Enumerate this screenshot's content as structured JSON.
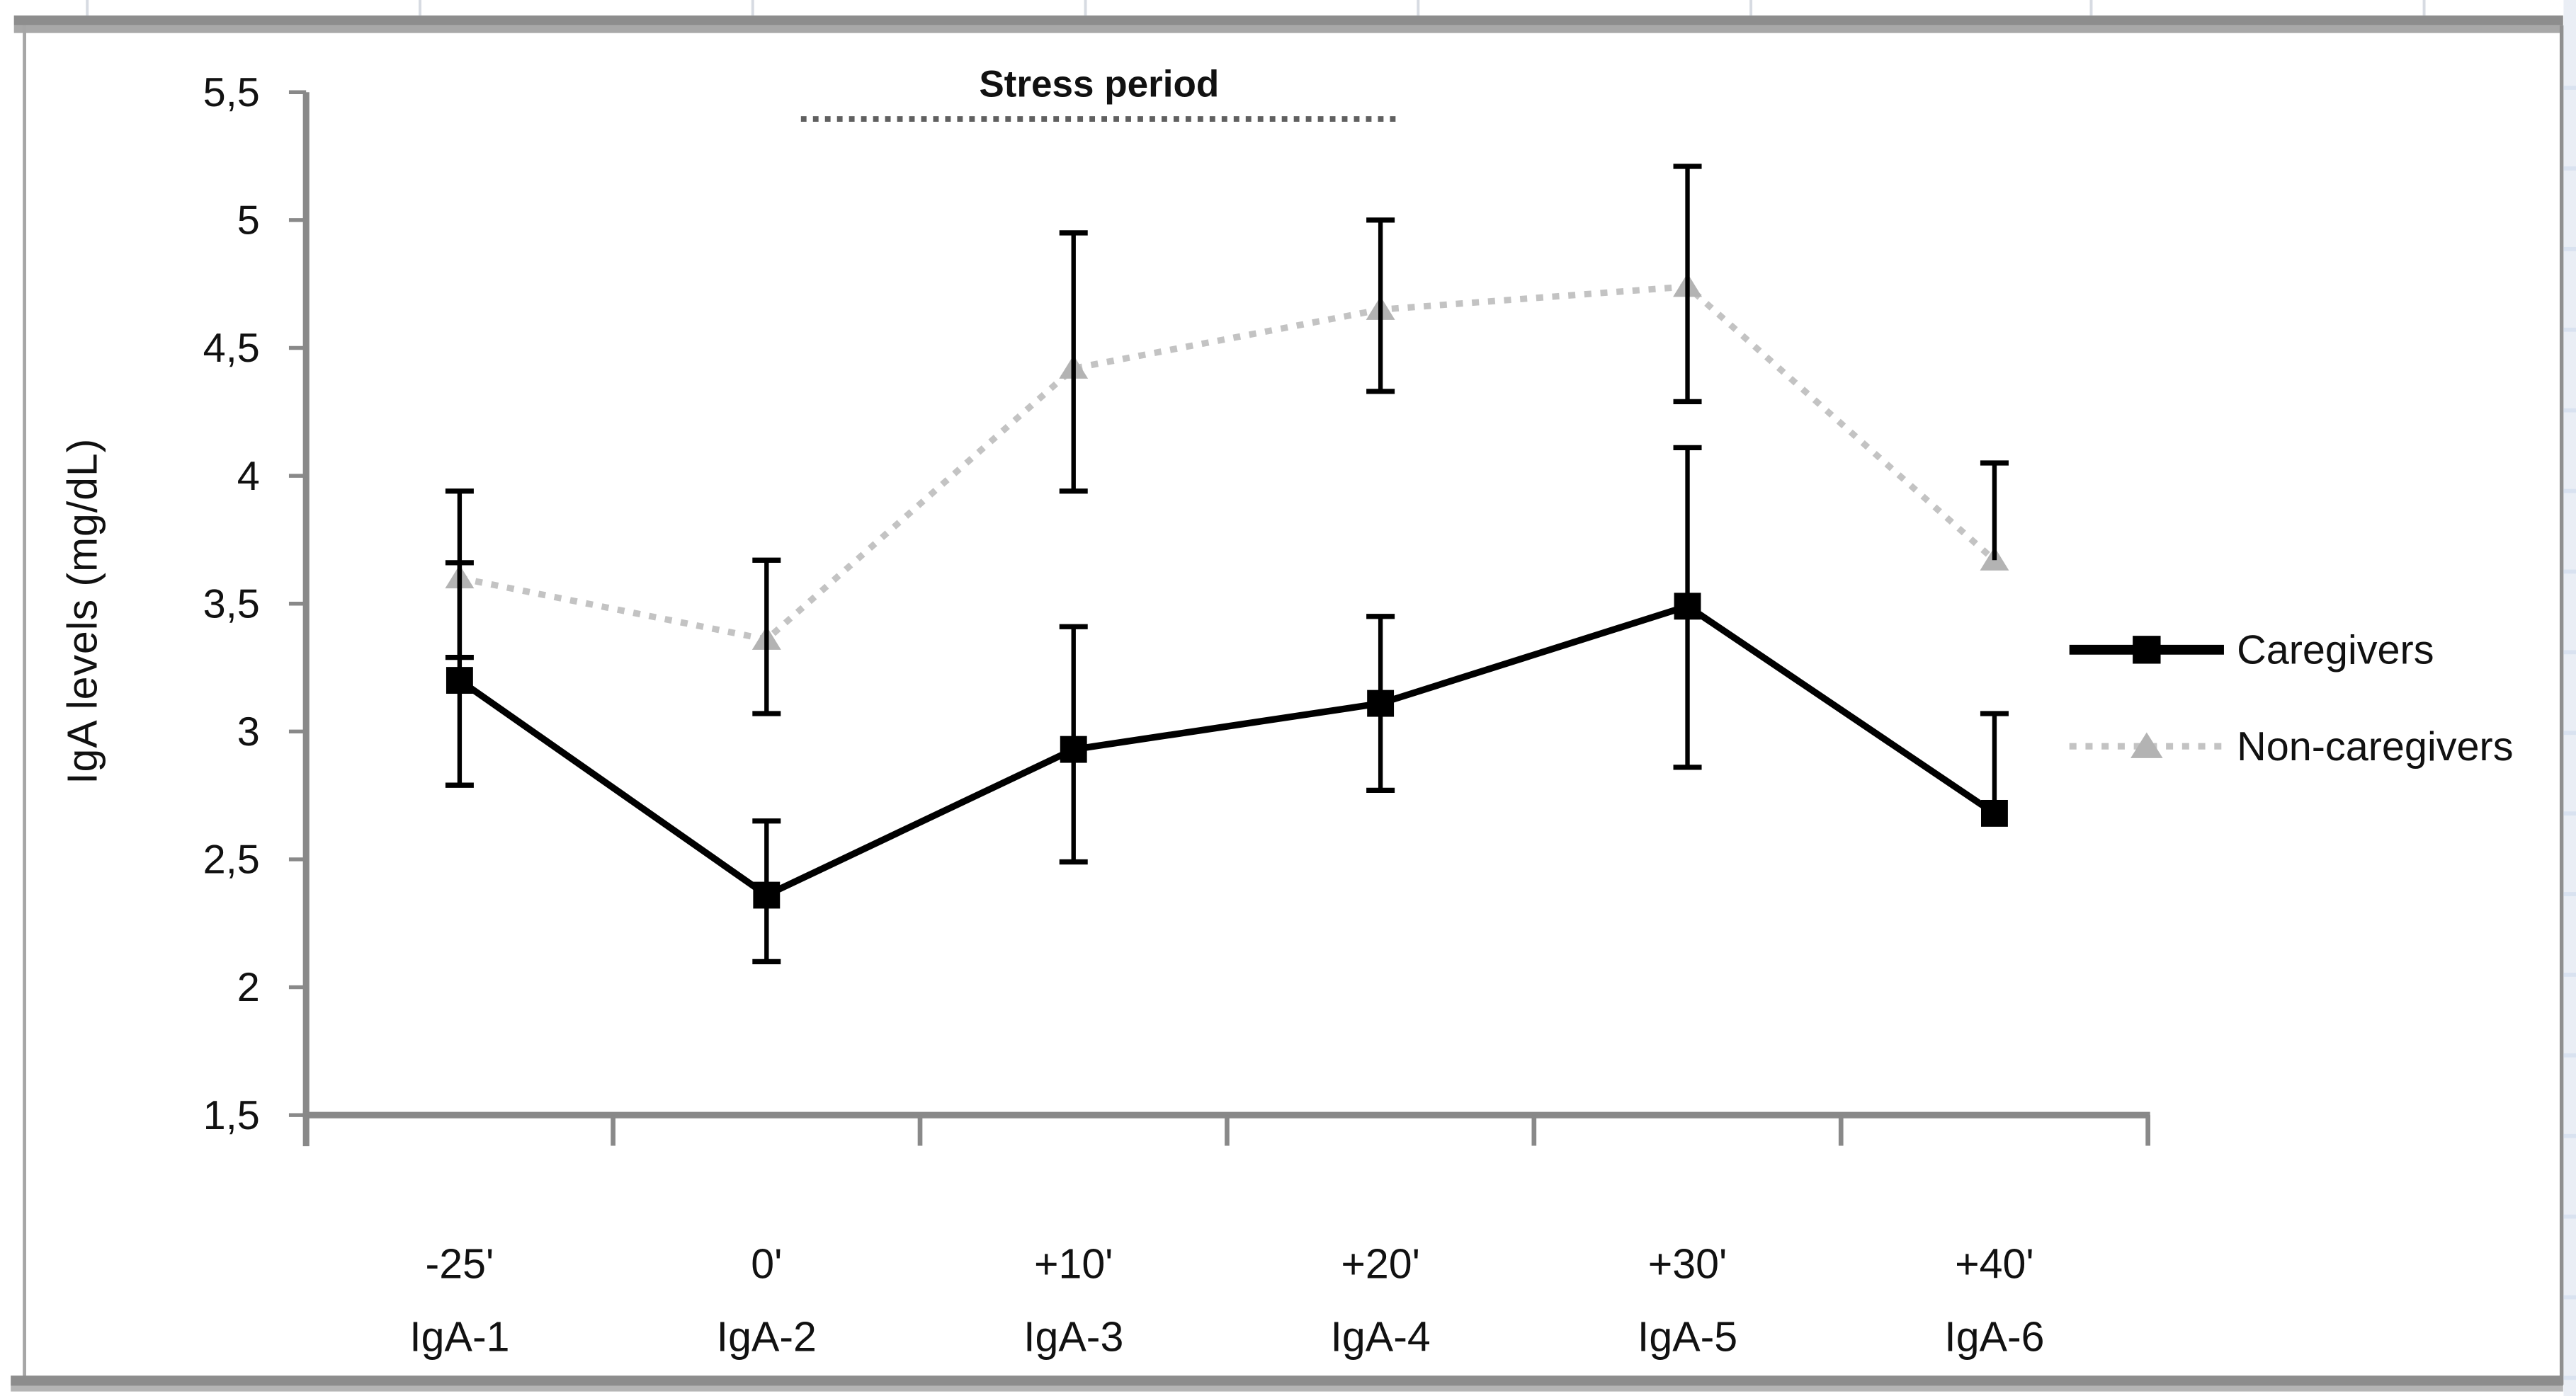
{
  "figure": {
    "background": "#ffffff",
    "frame": {
      "top_bar_color": "#8d8d8d",
      "bottom_bar_color": "#8d8d8d",
      "border_color": "#a6a6a6",
      "side_strip_color": "#eaeef5",
      "side_strip_mark_color": "#d9e2f0",
      "column_mark_color": "#d7dbe2"
    },
    "axis_color": "#898989",
    "text_color": "#111111"
  },
  "chart_data": {
    "type": "line",
    "title": "",
    "ylabel": "IgA levels (mg/dL)",
    "xlabel": "",
    "ylim": [
      1.5,
      5.5
    ],
    "grid": false,
    "legend_position": "right",
    "yticks": [
      {
        "value": 5.5,
        "label": "5,5"
      },
      {
        "value": 5.0,
        "label": "5"
      },
      {
        "value": 4.5,
        "label": "4,5"
      },
      {
        "value": 4.0,
        "label": "4"
      },
      {
        "value": 3.5,
        "label": "3,5"
      },
      {
        "value": 3.0,
        "label": "3"
      },
      {
        "value": 2.5,
        "label": "2,5"
      },
      {
        "value": 2.0,
        "label": "2"
      },
      {
        "value": 1.5,
        "label": "1,5"
      }
    ],
    "categories_time": [
      "-25'",
      "0'",
      "+10'",
      "+20'",
      "+30'",
      "+40'"
    ],
    "categories_sample": [
      "IgA-1",
      "IgA-2",
      "IgA-3",
      "IgA-4",
      "IgA-5",
      "IgA-6"
    ],
    "annotation": {
      "text": "Stress period",
      "span_from_category": "0'",
      "span_to_category": "+20'",
      "line_style": "dotted",
      "line_color": "#606060"
    },
    "series": [
      {
        "name": "Caregivers",
        "color": "#000000",
        "line_style": "solid",
        "marker": "square",
        "marker_color": "#000000",
        "error_color": "#000000",
        "values": [
          3.2,
          2.36,
          2.93,
          3.11,
          3.49,
          2.68
        ],
        "error_upper": [
          3.66,
          2.65,
          3.41,
          3.45,
          4.11,
          3.07
        ],
        "error_lower": [
          2.79,
          2.1,
          2.49,
          2.77,
          2.86,
          null
        ]
      },
      {
        "name": "Non-caregivers",
        "color": "#c3c3c3",
        "line_style": "dotted",
        "marker": "triangle",
        "marker_color": "#b3b3b3",
        "error_color": "#000000",
        "values": [
          3.6,
          3.36,
          4.42,
          4.65,
          4.74,
          3.67
        ],
        "error_upper": [
          3.94,
          3.67,
          4.95,
          5.0,
          5.21,
          4.05
        ],
        "error_lower": [
          3.29,
          3.07,
          3.94,
          4.33,
          4.29,
          null
        ]
      }
    ]
  }
}
